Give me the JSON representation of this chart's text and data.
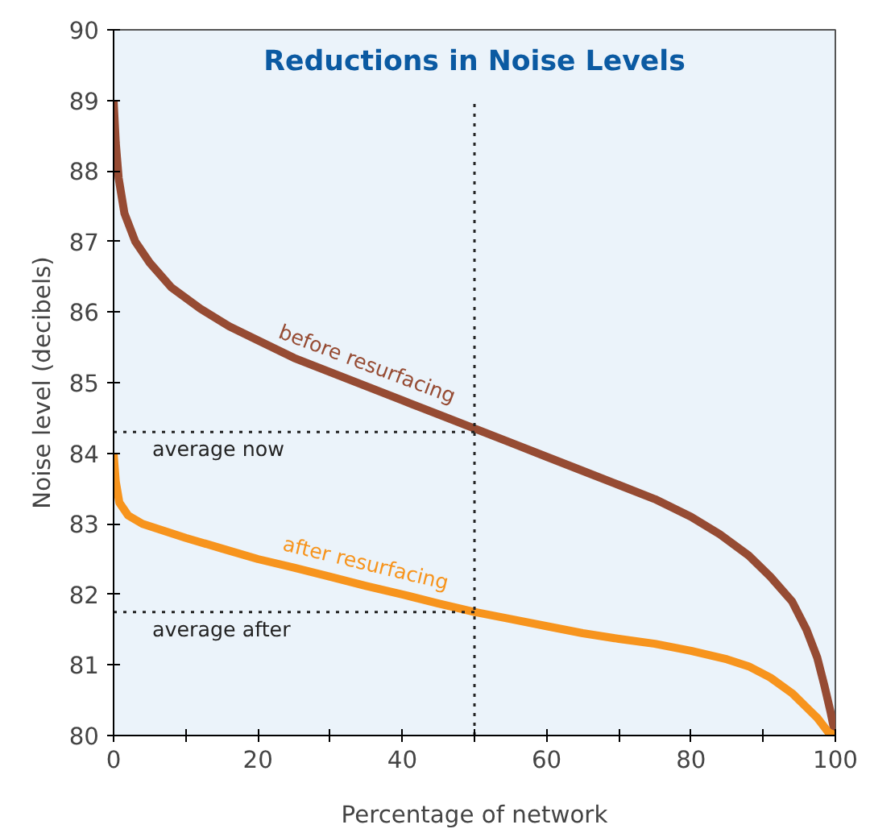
{
  "chart_data": {
    "type": "line",
    "title": "Reductions in Noise Levels",
    "xlabel": "Percentage of network",
    "ylabel": "Noise level (decibels)",
    "series": [
      {
        "name": "before resurfacing",
        "color": "#964b33",
        "x": [
          0,
          0.3,
          0.7,
          1.5,
          3,
          5,
          8,
          12,
          16,
          20,
          25,
          30,
          35,
          40,
          45,
          50,
          55,
          60,
          65,
          70,
          75,
          80,
          84,
          88,
          91,
          94,
          96,
          97.5,
          98.5,
          99.3,
          100
        ],
        "values": [
          89,
          88.4,
          87.9,
          87.4,
          87,
          86.7,
          86.35,
          86.05,
          85.8,
          85.6,
          85.35,
          85.15,
          84.95,
          84.75,
          84.55,
          84.35,
          84.15,
          83.95,
          83.75,
          83.55,
          83.35,
          83.1,
          82.85,
          82.55,
          82.25,
          81.9,
          81.5,
          81.1,
          80.7,
          80.35,
          80
        ]
      },
      {
        "name": "after resurfacing",
        "color": "#f7941d",
        "x": [
          0,
          0.3,
          0.8,
          2,
          4,
          7,
          10,
          15,
          20,
          25,
          30,
          35,
          40,
          45,
          50,
          55,
          60,
          65,
          70,
          75,
          80,
          85,
          88,
          91,
          94,
          96,
          97.5,
          99,
          100
        ],
        "values": [
          84,
          83.6,
          83.3,
          83.12,
          83,
          82.9,
          82.8,
          82.65,
          82.5,
          82.38,
          82.25,
          82.12,
          82,
          81.87,
          81.75,
          81.65,
          81.55,
          81.45,
          81.37,
          81.3,
          81.2,
          81.08,
          80.98,
          80.82,
          80.6,
          80.4,
          80.25,
          80.05,
          80
        ]
      }
    ],
    "ref_lines": [
      {
        "axis": "y",
        "value": 84.3,
        "label": "average now",
        "color": "#222222",
        "line_style": "dotted"
      },
      {
        "axis": "y",
        "value": 81.75,
        "label": "average after",
        "color": "#222222",
        "line_style": "dotted"
      },
      {
        "axis": "x",
        "value": 50,
        "color": "#222222",
        "line_style": "dotted"
      }
    ],
    "xlim": [
      0,
      100
    ],
    "ylim": [
      80,
      90
    ],
    "xticks": [
      0,
      {
        "value": 10,
        "label": null
      },
      20,
      {
        "value": 30,
        "label": null
      },
      40,
      {
        "value": 50,
        "label": null
      },
      60,
      {
        "value": 70,
        "label": null
      },
      80,
      {
        "value": 90,
        "label": null
      },
      100
    ],
    "yticks": [
      80,
      81,
      82,
      83,
      84,
      85,
      86,
      87,
      88,
      89,
      90
    ],
    "grid": false,
    "line_style": "solid",
    "marker": "none"
  }
}
